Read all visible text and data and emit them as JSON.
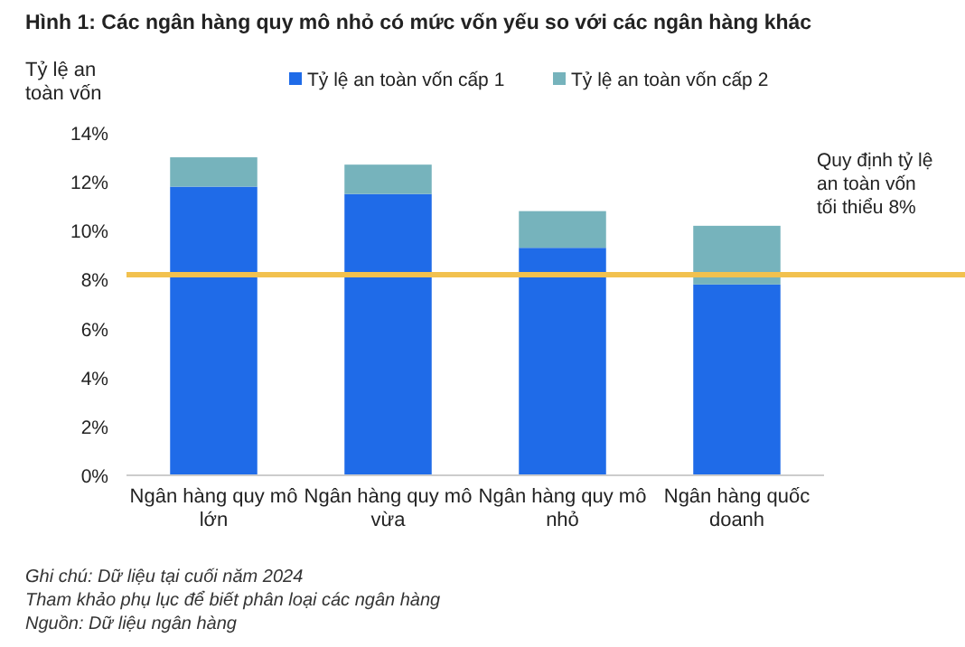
{
  "chart_data": {
    "type": "bar",
    "stacked": true,
    "title": "Hình 1: Các ngân hàng quy mô nhỏ có mức vốn yếu so với các ngân hàng khác",
    "ylabel": "Tỷ lệ an toàn vốn",
    "categories": [
      "Ngân hàng quy mô lớn",
      "Ngân hàng quy mô vừa",
      "Ngân hàng quy mô nhỏ",
      "Ngân hàng quốc doanh"
    ],
    "series": [
      {
        "name": "Tỷ lệ an toàn vốn cấp 1",
        "color": "#1f6be8",
        "values": [
          11.8,
          11.5,
          9.3,
          7.8
        ]
      },
      {
        "name": "Tỷ lệ an toàn vốn cấp 2",
        "color": "#76b3bc",
        "values": [
          1.2,
          1.2,
          1.5,
          2.4
        ]
      }
    ],
    "ylim": [
      0,
      14
    ],
    "yticks": [
      {
        "value": 0,
        "label": "0%"
      },
      {
        "value": 2,
        "label": "2%"
      },
      {
        "value": 4,
        "label": "4%"
      },
      {
        "value": 6,
        "label": "6%"
      },
      {
        "value": 8,
        "label": "8%"
      },
      {
        "value": 10,
        "label": "10%"
      },
      {
        "value": 12,
        "label": "12%"
      },
      {
        "value": 14,
        "label": "14%"
      }
    ],
    "ref_lines": [
      {
        "axis": "y",
        "value": 8.2,
        "label": "Quy định tỷ lệ an toàn vốn tối thiểu 8%",
        "color": "#f2c14e"
      }
    ],
    "legend": "top",
    "annotations": [
      "Ghi chú: Dữ liệu tại cuối năm 2024",
      "Tham khảo phụ lục để biết phân loại các ngân hàng",
      "Nguồn: Dữ liệu ngân hàng"
    ]
  }
}
